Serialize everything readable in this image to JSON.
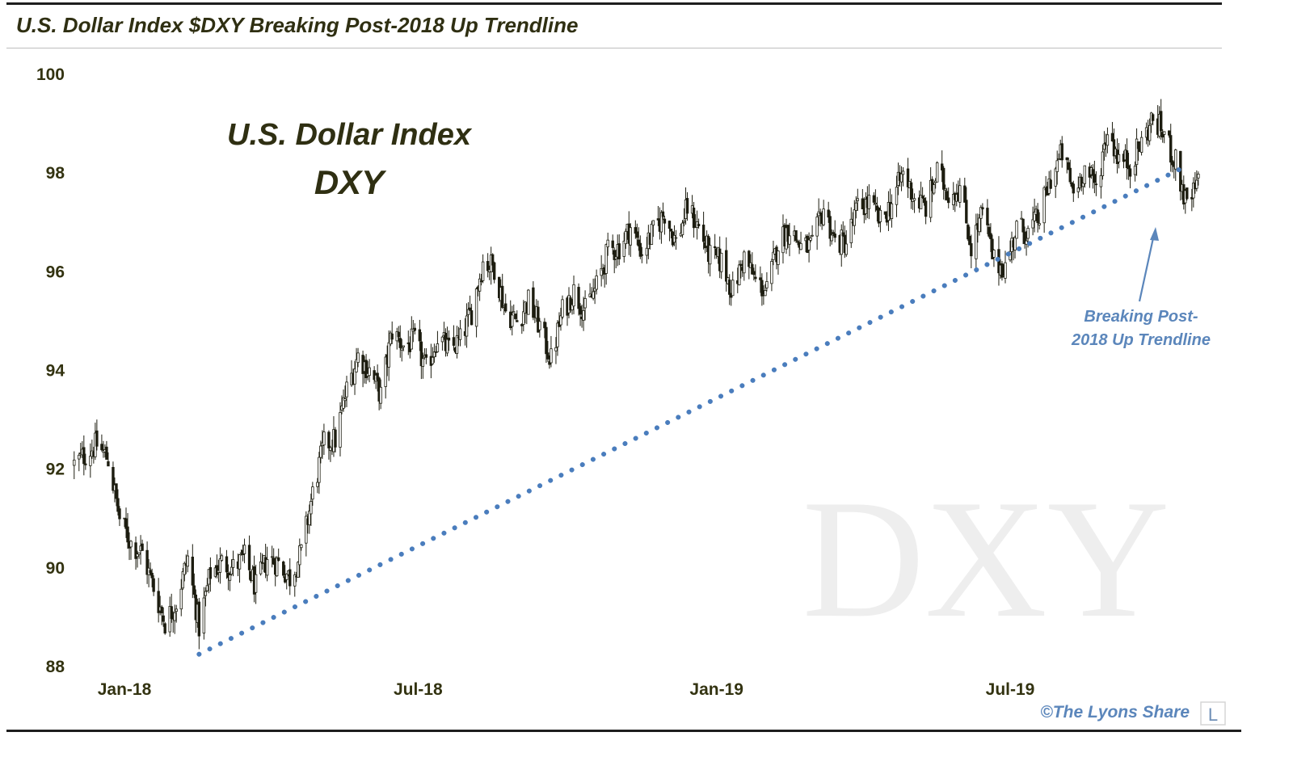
{
  "header": {
    "title": "U.S. Dollar Index $DXY Breaking Post-2018 Up Trendline"
  },
  "chart_data": {
    "type": "candlestick",
    "title": "U.S. Dollar Index",
    "subtitle": "DXY",
    "watermark": "DXY",
    "y_ticks": [
      "100",
      "98",
      "96",
      "94",
      "92",
      "90",
      "88"
    ],
    "ylim": [
      88,
      100
    ],
    "x_ticks": [
      "Jan-18",
      "Jul-18",
      "Jan-19",
      "Jul-19"
    ],
    "grid": false,
    "colors": {
      "up_body": "#ffffff",
      "down_body": "#1d1d10",
      "wick": "#1d1d10",
      "trendline": "#4a7dbd",
      "annotation": "#5b86bb",
      "title": "#2f2f12"
    },
    "trendline": {
      "style": "dotted",
      "start": {
        "date": "2018-02-16",
        "value": 88.25
      },
      "end": {
        "date": "2019-10-15",
        "value": 98.1
      }
    },
    "annotation": {
      "line1": "Breaking Post-",
      "line2": "2018 Up Trendline",
      "points_to": {
        "date": "2019-09-28",
        "value": 97.4
      }
    },
    "anchors_close": [
      [
        "2017-12-01",
        92.1
      ],
      [
        "2017-12-08",
        92.3
      ],
      [
        "2017-12-15",
        92.5
      ],
      [
        "2017-12-22",
        92.2
      ],
      [
        "2017-12-29",
        91.0
      ],
      [
        "2018-01-05",
        90.5
      ],
      [
        "2018-01-12",
        90.3
      ],
      [
        "2018-01-19",
        89.6
      ],
      [
        "2018-01-26",
        88.9
      ],
      [
        "2018-02-02",
        89.3
      ],
      [
        "2018-02-09",
        90.2
      ],
      [
        "2018-02-16",
        88.8
      ],
      [
        "2018-02-23",
        89.9
      ],
      [
        "2018-03-02",
        90.1
      ],
      [
        "2018-03-09",
        90.0
      ],
      [
        "2018-03-16",
        90.2
      ],
      [
        "2018-03-23",
        89.6
      ],
      [
        "2018-03-30",
        90.2
      ],
      [
        "2018-04-06",
        90.1
      ],
      [
        "2018-04-13",
        89.8
      ],
      [
        "2018-04-20",
        90.3
      ],
      [
        "2018-04-27",
        91.5
      ],
      [
        "2018-05-04",
        92.5
      ],
      [
        "2018-05-11",
        92.6
      ],
      [
        "2018-05-18",
        93.6
      ],
      [
        "2018-05-25",
        94.3
      ],
      [
        "2018-06-01",
        94.0
      ],
      [
        "2018-06-08",
        93.5
      ],
      [
        "2018-06-15",
        94.8
      ],
      [
        "2018-06-22",
        94.5
      ],
      [
        "2018-06-29",
        94.6
      ],
      [
        "2018-07-06",
        94.0
      ],
      [
        "2018-07-13",
        94.7
      ],
      [
        "2018-07-20",
        94.4
      ],
      [
        "2018-07-27",
        94.6
      ],
      [
        "2018-08-03",
        95.2
      ],
      [
        "2018-08-10",
        96.2
      ],
      [
        "2018-08-17",
        96.1
      ],
      [
        "2018-08-24",
        95.2
      ],
      [
        "2018-08-31",
        95.0
      ],
      [
        "2018-09-07",
        95.4
      ],
      [
        "2018-09-14",
        94.9
      ],
      [
        "2018-09-21",
        94.2
      ],
      [
        "2018-09-28",
        95.2
      ],
      [
        "2018-10-05",
        95.6
      ],
      [
        "2018-10-12",
        95.2
      ],
      [
        "2018-10-19",
        95.7
      ],
      [
        "2018-10-26",
        96.4
      ],
      [
        "2018-11-02",
        96.5
      ],
      [
        "2018-11-09",
        96.9
      ],
      [
        "2018-11-16",
        96.4
      ],
      [
        "2018-11-23",
        96.8
      ],
      [
        "2018-11-30",
        97.2
      ],
      [
        "2018-12-07",
        96.6
      ],
      [
        "2018-12-14",
        97.3
      ],
      [
        "2018-12-21",
        96.9
      ],
      [
        "2018-12-28",
        96.3
      ],
      [
        "2019-01-04",
        96.2
      ],
      [
        "2019-01-11",
        95.6
      ],
      [
        "2019-01-18",
        96.3
      ],
      [
        "2019-01-25",
        95.8
      ],
      [
        "2019-02-01",
        95.6
      ],
      [
        "2019-02-08",
        96.6
      ],
      [
        "2019-02-15",
        96.9
      ],
      [
        "2019-02-22",
        96.5
      ],
      [
        "2019-03-01",
        96.5
      ],
      [
        "2019-03-08",
        97.3
      ],
      [
        "2019-03-15",
        96.6
      ],
      [
        "2019-03-22",
        96.6
      ],
      [
        "2019-03-29",
        97.3
      ],
      [
        "2019-04-05",
        97.4
      ],
      [
        "2019-04-12",
        97.0
      ],
      [
        "2019-04-19",
        97.4
      ],
      [
        "2019-04-26",
        98.0
      ],
      [
        "2019-05-03",
        97.5
      ],
      [
        "2019-05-10",
        97.3
      ],
      [
        "2019-05-17",
        98.0
      ],
      [
        "2019-05-24",
        97.6
      ],
      [
        "2019-05-31",
        97.7
      ],
      [
        "2019-06-07",
        96.5
      ],
      [
        "2019-06-14",
        97.2
      ],
      [
        "2019-06-21",
        96.2
      ],
      [
        "2019-06-28",
        96.1
      ],
      [
        "2019-07-05",
        96.9
      ],
      [
        "2019-07-12",
        96.8
      ],
      [
        "2019-07-19",
        97.1
      ],
      [
        "2019-07-26",
        97.9
      ],
      [
        "2019-08-02",
        98.4
      ],
      [
        "2019-08-09",
        97.6
      ],
      [
        "2019-08-16",
        98.1
      ],
      [
        "2019-08-23",
        97.7
      ],
      [
        "2019-08-30",
        98.9
      ],
      [
        "2019-09-06",
        98.3
      ],
      [
        "2019-09-13",
        98.2
      ],
      [
        "2019-09-20",
        98.6
      ],
      [
        "2019-09-27",
        99.1
      ],
      [
        "2019-10-04",
        98.8
      ],
      [
        "2019-10-11",
        98.2
      ],
      [
        "2019-10-18",
        97.3
      ],
      [
        "2019-10-25",
        97.8
      ]
    ]
  },
  "footer": {
    "copyright": "©The Lyons Share",
    "logo_letter": "L"
  }
}
